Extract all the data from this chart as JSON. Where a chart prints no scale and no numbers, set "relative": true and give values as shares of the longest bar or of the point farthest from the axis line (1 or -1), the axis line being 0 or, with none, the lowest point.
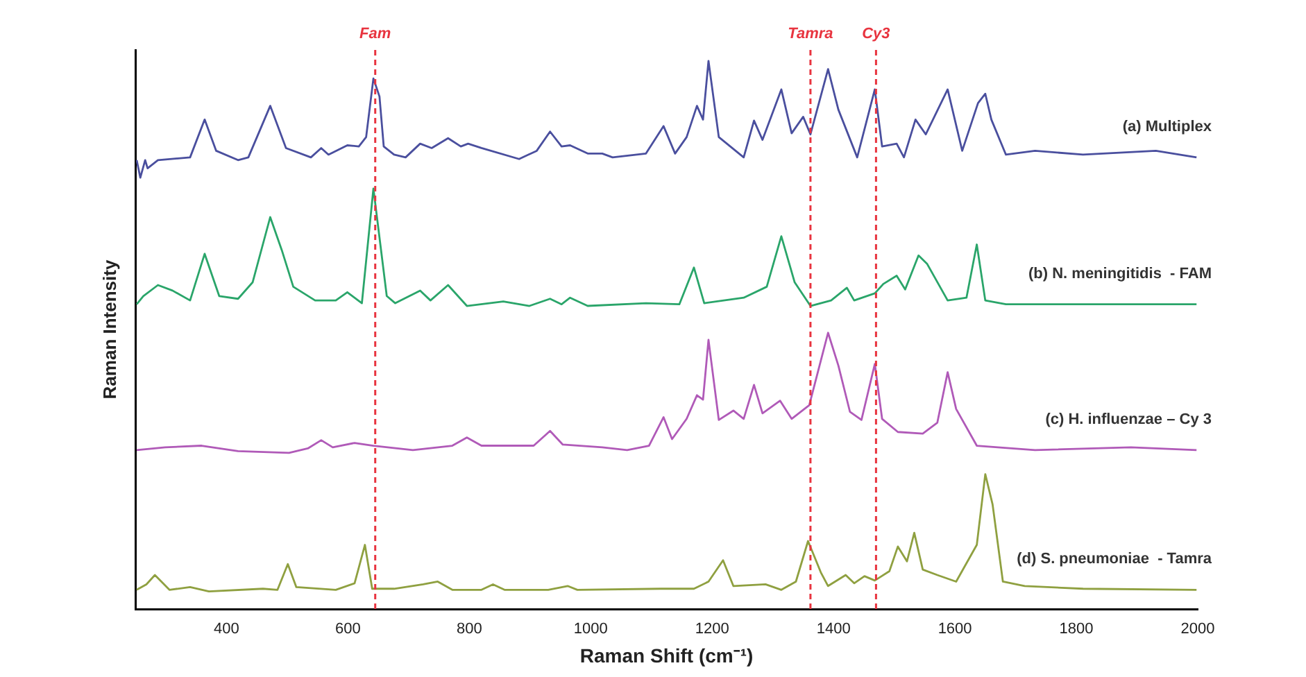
{
  "chart_data": {
    "type": "line",
    "relative": true,
    "xlabel": "Raman Shift (cm⁻¹)",
    "ylabel": "Raman Intensity",
    "xlim": [
      250,
      2000
    ],
    "xticks": [
      400,
      600,
      800,
      1000,
      1200,
      1400,
      1600,
      1800,
      2000
    ],
    "grid": false,
    "legend": false,
    "marker": "none",
    "line_style": "solid",
    "ref_lines": [
      {
        "axis": "x",
        "value": 645,
        "label": "Fam",
        "color": "#e8343f",
        "line_style": "dashed"
      },
      {
        "axis": "x",
        "value": 1362,
        "label": "Tamra",
        "color": "#e8343f",
        "line_style": "dashed"
      },
      {
        "axis": "x",
        "value": 1470,
        "label": "Cy3",
        "color": "#e8343f",
        "line_style": "dashed"
      }
    ],
    "series": [
      {
        "name": "(a) Multiplex",
        "color": "#4a4f9e",
        "x": [
          252,
          258,
          266,
          270,
          287,
          340,
          364,
          383,
          419,
          436,
          472,
          498,
          539,
          556,
          568,
          599,
          618,
          630,
          642,
          652,
          659,
          676,
          695,
          719,
          738,
          765,
          786,
          798,
          820,
          882,
          911,
          933,
          952,
          966,
          995,
          1019,
          1036,
          1091,
          1120,
          1139,
          1158,
          1175,
          1185,
          1194,
          1211,
          1252,
          1269,
          1283,
          1314,
          1331,
          1350,
          1362,
          1391,
          1408,
          1439,
          1468,
          1480,
          1504,
          1516,
          1535,
          1552,
          1588,
          1612,
          1638,
          1650,
          1660,
          1684,
          1732,
          1811,
          1931,
          1998
        ],
        "values": [
          0.819,
          0.787,
          0.819,
          0.804,
          0.819,
          0.824,
          0.893,
          0.836,
          0.819,
          0.824,
          0.918,
          0.841,
          0.824,
          0.841,
          0.829,
          0.846,
          0.844,
          0.861,
          0.968,
          0.935,
          0.844,
          0.829,
          0.824,
          0.849,
          0.841,
          0.859,
          0.844,
          0.849,
          0.841,
          0.821,
          0.836,
          0.871,
          0.844,
          0.846,
          0.831,
          0.831,
          0.824,
          0.831,
          0.881,
          0.831,
          0.861,
          0.918,
          0.893,
          1.0,
          0.861,
          0.824,
          0.891,
          0.856,
          0.948,
          0.868,
          0.898,
          0.866,
          0.985,
          0.911,
          0.824,
          0.948,
          0.844,
          0.849,
          0.824,
          0.893,
          0.866,
          0.948,
          0.836,
          0.923,
          0.94,
          0.893,
          0.829,
          0.836,
          0.829,
          0.836,
          0.824
        ]
      },
      {
        "name": "(b) N. meningitidis  - FAM",
        "color": "#2aa56a",
        "x": [
          252,
          263,
          287,
          311,
          340,
          364,
          388,
          419,
          443,
          472,
          491,
          510,
          546,
          580,
          599,
          623,
          642,
          664,
          678,
          719,
          736,
          765,
          796,
          856,
          899,
          933,
          952,
          966,
          995,
          1091,
          1146,
          1170,
          1187,
          1252,
          1290,
          1314,
          1336,
          1362,
          1396,
          1422,
          1434,
          1468,
          1482,
          1504,
          1518,
          1540,
          1554,
          1588,
          1619,
          1636,
          1650,
          1684,
          1998
        ],
        "values": [
          0.556,
          0.571,
          0.591,
          0.581,
          0.563,
          0.648,
          0.571,
          0.566,
          0.596,
          0.715,
          0.655,
          0.588,
          0.563,
          0.563,
          0.578,
          0.558,
          0.767,
          0.571,
          0.558,
          0.581,
          0.563,
          0.591,
          0.553,
          0.561,
          0.553,
          0.566,
          0.556,
          0.568,
          0.553,
          0.558,
          0.556,
          0.623,
          0.558,
          0.568,
          0.588,
          0.68,
          0.596,
          0.553,
          0.563,
          0.586,
          0.563,
          0.576,
          0.593,
          0.608,
          0.583,
          0.645,
          0.63,
          0.563,
          0.568,
          0.665,
          0.563,
          0.556,
          0.556
        ]
      },
      {
        "name": "(c) H. influenzae – Cy 3",
        "color": "#b05ab8",
        "x": [
          252,
          299,
          359,
          419,
          503,
          534,
          556,
          575,
          611,
          642,
          707,
          772,
          796,
          820,
          906,
          933,
          954,
          1019,
          1060,
          1096,
          1120,
          1134,
          1158,
          1175,
          1185,
          1194,
          1211,
          1235,
          1252,
          1269,
          1283,
          1312,
          1331,
          1360,
          1391,
          1408,
          1427,
          1446,
          1468,
          1480,
          1506,
          1547,
          1571,
          1588,
          1602,
          1636,
          1732,
          1890,
          1998
        ],
        "values": [
          0.29,
          0.295,
          0.298,
          0.288,
          0.285,
          0.293,
          0.308,
          0.295,
          0.303,
          0.298,
          0.29,
          0.298,
          0.313,
          0.298,
          0.298,
          0.325,
          0.3,
          0.295,
          0.29,
          0.298,
          0.35,
          0.31,
          0.347,
          0.39,
          0.382,
          0.491,
          0.345,
          0.362,
          0.347,
          0.409,
          0.357,
          0.38,
          0.347,
          0.372,
          0.504,
          0.444,
          0.36,
          0.345,
          0.447,
          0.347,
          0.323,
          0.32,
          0.34,
          0.432,
          0.365,
          0.298,
          0.29,
          0.295,
          0.29
        ]
      },
      {
        "name": "(d) S. pneumoniae  - Tamra",
        "color": "#8fa040",
        "x": [
          252,
          268,
          282,
          306,
          340,
          371,
          460,
          484,
          501,
          515,
          580,
          611,
          628,
          640,
          676,
          724,
          748,
          772,
          820,
          839,
          858,
          930,
          962,
          978,
          1115,
          1170,
          1194,
          1218,
          1235,
          1288,
          1314,
          1338,
          1358,
          1379,
          1391,
          1420,
          1434,
          1451,
          1468,
          1492,
          1506,
          1521,
          1533,
          1547,
          1571,
          1602,
          1636,
          1650,
          1662,
          1679,
          1715,
          1811,
          1998
        ],
        "values": [
          0.035,
          0.045,
          0.062,
          0.035,
          0.04,
          0.032,
          0.037,
          0.035,
          0.082,
          0.04,
          0.035,
          0.047,
          0.117,
          0.037,
          0.037,
          0.045,
          0.05,
          0.035,
          0.035,
          0.045,
          0.035,
          0.035,
          0.042,
          0.035,
          0.037,
          0.037,
          0.05,
          0.089,
          0.042,
          0.045,
          0.035,
          0.05,
          0.124,
          0.067,
          0.042,
          0.062,
          0.047,
          0.06,
          0.052,
          0.069,
          0.114,
          0.087,
          0.139,
          0.072,
          0.062,
          0.05,
          0.117,
          0.246,
          0.191,
          0.05,
          0.042,
          0.037,
          0.035
        ]
      }
    ]
  }
}
